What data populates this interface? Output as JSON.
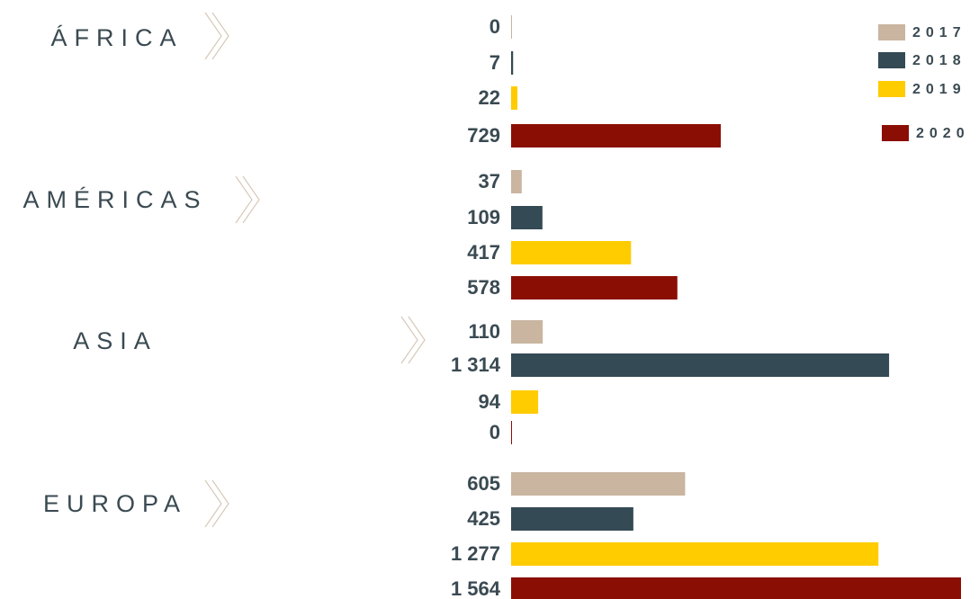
{
  "chart_data": {
    "type": "bar",
    "categories": [
      "ÁFRICA",
      "AMÉRICAS",
      "ASIA",
      "EUROPA"
    ],
    "series": [
      {
        "name": "2017",
        "color": "#c9b5a0",
        "values": [
          0,
          37,
          110,
          605
        ],
        "value_labels": [
          "0",
          "37",
          "110",
          "605"
        ]
      },
      {
        "name": "2018",
        "color": "#344a54",
        "values": [
          7,
          109,
          1314,
          425
        ],
        "value_labels": [
          "7",
          "109",
          "1 314",
          "425"
        ]
      },
      {
        "name": "2019",
        "color": "#ffcc00",
        "values": [
          22,
          417,
          94,
          1277
        ],
        "value_labels": [
          "22",
          "417",
          "94",
          "1 277"
        ]
      },
      {
        "name": "2020",
        "color": "#8b0e04",
        "values": [
          729,
          578,
          0,
          1564
        ],
        "value_labels": [
          "729",
          "578",
          "0",
          "1 564"
        ]
      }
    ]
  }
}
